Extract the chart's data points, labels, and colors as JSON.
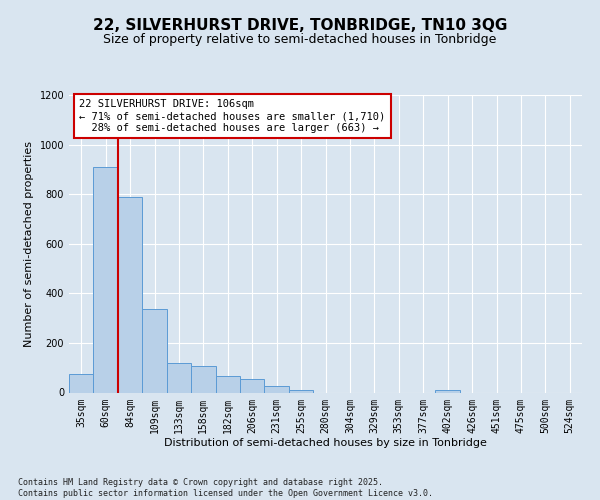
{
  "title": "22, SILVERHURST DRIVE, TONBRIDGE, TN10 3QG",
  "subtitle": "Size of property relative to semi-detached houses in Tonbridge",
  "xlabel": "Distribution of semi-detached houses by size in Tonbridge",
  "ylabel": "Number of semi-detached properties",
  "categories": [
    "35sqm",
    "60sqm",
    "84sqm",
    "109sqm",
    "133sqm",
    "158sqm",
    "182sqm",
    "206sqm",
    "231sqm",
    "255sqm",
    "280sqm",
    "304sqm",
    "329sqm",
    "353sqm",
    "377sqm",
    "402sqm",
    "426sqm",
    "451sqm",
    "475sqm",
    "500sqm",
    "524sqm"
  ],
  "values": [
    75,
    910,
    790,
    335,
    120,
    105,
    65,
    55,
    25,
    10,
    0,
    0,
    0,
    0,
    0,
    10,
    0,
    0,
    0,
    0,
    0
  ],
  "bar_color": "#b8d0e8",
  "bar_edge_color": "#5b9bd5",
  "background_color": "#d9e5f0",
  "plot_bg_color": "#d9e5f0",
  "grid_color": "#ffffff",
  "vline_x": 1.5,
  "vline_color": "#cc0000",
  "annotation_text": "22 SILVERHURST DRIVE: 106sqm\n← 71% of semi-detached houses are smaller (1,710)\n  28% of semi-detached houses are larger (663) →",
  "annotation_box_color": "#cc0000",
  "annotation_fill": "#ffffff",
  "ylim": [
    0,
    1200
  ],
  "yticks": [
    0,
    200,
    400,
    600,
    800,
    1000,
    1200
  ],
  "footer_text": "Contains HM Land Registry data © Crown copyright and database right 2025.\nContains public sector information licensed under the Open Government Licence v3.0.",
  "title_fontsize": 11,
  "subtitle_fontsize": 9,
  "axis_label_fontsize": 8,
  "tick_fontsize": 7,
  "annotation_fontsize": 7.5,
  "footer_fontsize": 6
}
